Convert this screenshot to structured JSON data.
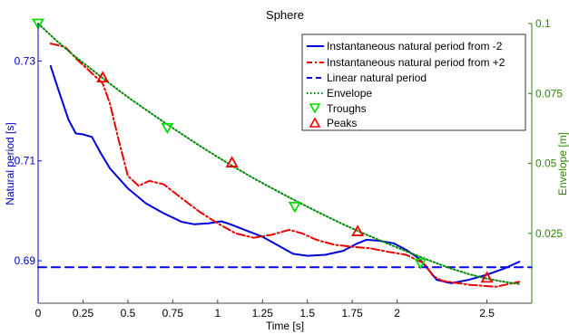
{
  "chart_data": {
    "type": "line",
    "title": "Sphere",
    "xlabel": "Time [s]",
    "ylabel_left": "Natural period [s]",
    "ylabel_right": "Envelope [m]",
    "xlim": [
      0,
      2.75
    ],
    "ylim_left": [
      0.6815,
      0.7375
    ],
    "ylim_right": [
      0.0,
      0.1
    ],
    "x_ticks": [
      "0",
      "0.25",
      "0.5",
      "0.75",
      "1",
      "1.25",
      "1.5",
      "1.75",
      "2",
      "2.5"
    ],
    "x_tick_values": [
      0,
      0.25,
      0.5,
      0.75,
      1.0,
      1.25,
      1.5,
      1.75,
      2.0,
      2.5
    ],
    "y_left_ticks": [
      "0.69",
      "0.71",
      "0.73"
    ],
    "y_left_tick_values": [
      0.69,
      0.71,
      0.73
    ],
    "y_right_ticks": [
      "0.025",
      "0.05",
      "0.075",
      "0.1"
    ],
    "y_right_tick_values": [
      0.025,
      0.05,
      0.075,
      0.1
    ],
    "legend_position": "top-right",
    "colors": {
      "minus2": "#0000dd",
      "plus2": "#ee0000",
      "linear": "#0000ee",
      "envelope": "#008800",
      "troughs": "#00dd00",
      "peaks": "#ee0000",
      "left_axis": "#0000cc",
      "right_axis": "#2b8a00"
    },
    "series": [
      {
        "name": "Instantaneous natural period from -2",
        "axis": "left",
        "style": "solid",
        "points": [
          [
            0.07,
            0.729
          ],
          [
            0.12,
            0.7235
          ],
          [
            0.17,
            0.7182
          ],
          [
            0.21,
            0.7155
          ],
          [
            0.25,
            0.7153
          ],
          [
            0.3,
            0.7148
          ],
          [
            0.35,
            0.7115
          ],
          [
            0.4,
            0.7085
          ],
          [
            0.5,
            0.7045
          ],
          [
            0.6,
            0.7015
          ],
          [
            0.7,
            0.6995
          ],
          [
            0.8,
            0.6978
          ],
          [
            0.87,
            0.6973
          ],
          [
            0.95,
            0.6975
          ],
          [
            1.02,
            0.6979
          ],
          [
            1.08,
            0.6972
          ],
          [
            1.15,
            0.6962
          ],
          [
            1.25,
            0.6948
          ],
          [
            1.35,
            0.6928
          ],
          [
            1.42,
            0.6914
          ],
          [
            1.5,
            0.691
          ],
          [
            1.6,
            0.6912
          ],
          [
            1.7,
            0.692
          ],
          [
            1.78,
            0.6935
          ],
          [
            1.83,
            0.6942
          ],
          [
            1.9,
            0.694
          ],
          [
            1.98,
            0.6935
          ],
          [
            2.05,
            0.6922
          ],
          [
            2.12,
            0.6905
          ],
          [
            2.18,
            0.688
          ],
          [
            2.22,
            0.6862
          ],
          [
            2.3,
            0.6855
          ],
          [
            2.4,
            0.6862
          ],
          [
            2.5,
            0.6872
          ],
          [
            2.6,
            0.6885
          ],
          [
            2.68,
            0.6898
          ]
        ]
      },
      {
        "name": "Instantaneous natural period from +2",
        "axis": "left",
        "style": "dash-dot",
        "points": [
          [
            0.07,
            0.7335
          ],
          [
            0.15,
            0.7328
          ],
          [
            0.22,
            0.7302
          ],
          [
            0.28,
            0.7282
          ],
          [
            0.33,
            0.7265
          ],
          [
            0.36,
            0.7255
          ],
          [
            0.4,
            0.7215
          ],
          [
            0.45,
            0.714
          ],
          [
            0.5,
            0.707
          ],
          [
            0.56,
            0.705
          ],
          [
            0.62,
            0.706
          ],
          [
            0.7,
            0.7053
          ],
          [
            0.8,
            0.7025
          ],
          [
            0.9,
            0.6998
          ],
          [
            1.0,
            0.6975
          ],
          [
            1.1,
            0.6955
          ],
          [
            1.2,
            0.6946
          ],
          [
            1.3,
            0.6952
          ],
          [
            1.4,
            0.6962
          ],
          [
            1.47,
            0.6955
          ],
          [
            1.55,
            0.6942
          ],
          [
            1.65,
            0.6932
          ],
          [
            1.75,
            0.6928
          ],
          [
            1.85,
            0.6925
          ],
          [
            1.95,
            0.6918
          ],
          [
            2.05,
            0.6912
          ],
          [
            2.15,
            0.6895
          ],
          [
            2.2,
            0.687
          ],
          [
            2.25,
            0.686
          ],
          [
            2.4,
            0.6852
          ],
          [
            2.55,
            0.6848
          ],
          [
            2.68,
            0.6858
          ]
        ]
      },
      {
        "name": "Linear natural period",
        "axis": "left",
        "style": "dashed",
        "points": [
          [
            0,
            0.6887
          ],
          [
            2.75,
            0.6887
          ]
        ]
      },
      {
        "name": "Envelope",
        "axis": "right",
        "style": "dotted",
        "points": [
          [
            0.0,
            0.1
          ],
          [
            0.1,
            0.094
          ],
          [
            0.2,
            0.0885
          ],
          [
            0.3,
            0.0835
          ],
          [
            0.4,
            0.0785
          ],
          [
            0.5,
            0.0737
          ],
          [
            0.6,
            0.0692
          ],
          [
            0.7,
            0.0648
          ],
          [
            0.8,
            0.0605
          ],
          [
            0.9,
            0.0563
          ],
          [
            1.0,
            0.0523
          ],
          [
            1.1,
            0.0484
          ],
          [
            1.2,
            0.0447
          ],
          [
            1.3,
            0.0412
          ],
          [
            1.4,
            0.0378
          ],
          [
            1.5,
            0.0345
          ],
          [
            1.6,
            0.0313
          ],
          [
            1.7,
            0.0282
          ],
          [
            1.8,
            0.0253
          ],
          [
            1.9,
            0.0226
          ],
          [
            2.0,
            0.0199
          ],
          [
            2.1,
            0.0173
          ],
          [
            2.2,
            0.0148
          ],
          [
            2.3,
            0.0124
          ],
          [
            2.4,
            0.0104
          ],
          [
            2.5,
            0.0088
          ],
          [
            2.6,
            0.0076
          ],
          [
            2.68,
            0.0069
          ]
        ]
      }
    ],
    "markers": [
      {
        "name": "Troughs",
        "axis": "right",
        "shape": "triangle-down",
        "points": [
          [
            0.0,
            0.1
          ],
          [
            0.72,
            0.0627
          ],
          [
            1.43,
            0.0345
          ],
          [
            2.13,
            0.0143
          ]
        ]
      },
      {
        "name": "Peaks",
        "axis": "right",
        "shape": "triangle-up",
        "points": [
          [
            0.36,
            0.0807
          ],
          [
            1.08,
            0.0503
          ],
          [
            1.78,
            0.0257
          ],
          [
            2.5,
            0.0091
          ]
        ]
      }
    ]
  }
}
